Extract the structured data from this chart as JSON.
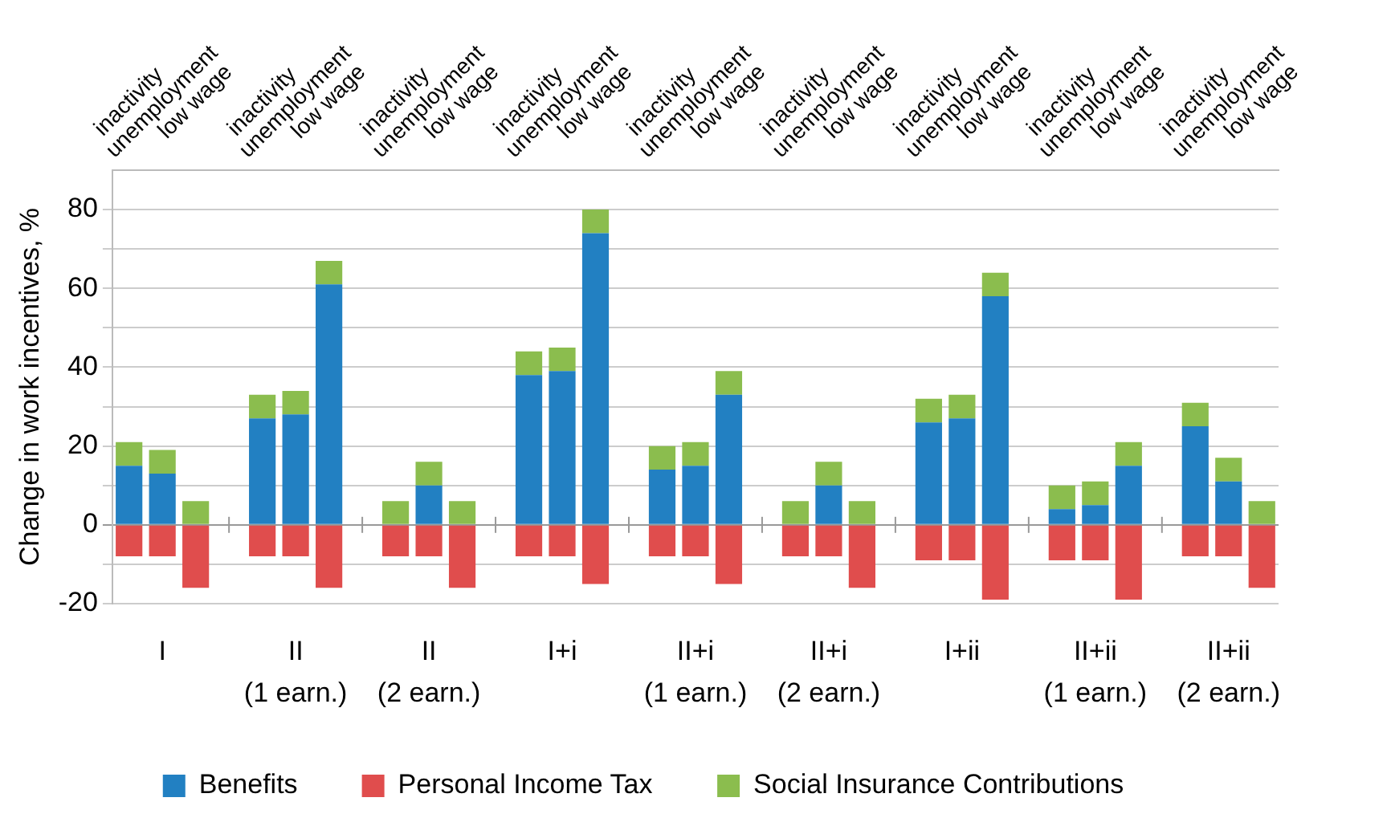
{
  "chart_data": {
    "type": "bar",
    "stacked": true,
    "ylabel": "Change in work incentives, %",
    "categories": [
      "inactivity",
      "unemployment",
      "low wage",
      null,
      "inactivity",
      "unemployment",
      "low wage",
      null,
      "inactivity",
      "unemployment",
      "low wage",
      null,
      "inactivity",
      "unemployment",
      "low wage",
      null,
      "inactivity",
      "unemployment",
      "low wage",
      null,
      "inactivity",
      "unemployment",
      "low wage",
      null,
      "inactivity",
      "unemployment",
      "low wage",
      null,
      "inactivity",
      "unemployment",
      "low wage",
      null,
      "inactivity",
      "unemployment",
      "low wage"
    ],
    "series": [
      {
        "name": "Benefits",
        "color": "#2280c2",
        "values": [
          15,
          13,
          null,
          null,
          27,
          28,
          61,
          null,
          null,
          10,
          null,
          null,
          38,
          39,
          74,
          null,
          14,
          15,
          33,
          null,
          null,
          10,
          null,
          null,
          26,
          27,
          58,
          null,
          4,
          5,
          15,
          null,
          25,
          11,
          null
        ]
      },
      {
        "name": "Personal Income Tax",
        "color": "#e04d4d",
        "values": [
          -8,
          -8,
          -16,
          null,
          -8,
          -8,
          -16,
          null,
          -8,
          -8,
          -16,
          null,
          -8,
          -8,
          -15,
          null,
          -8,
          -8,
          -15,
          null,
          -8,
          -8,
          -16,
          null,
          -9,
          -9,
          -19,
          null,
          -9,
          -9,
          -19,
          null,
          -8,
          -8,
          -16
        ]
      },
      {
        "name": "Social Insurance Contributions",
        "color": "#8bbd4e",
        "values": [
          6,
          6,
          6,
          null,
          6,
          6,
          6,
          null,
          6,
          6,
          6,
          null,
          6,
          6,
          6,
          null,
          6,
          6,
          6,
          null,
          6,
          6,
          6,
          null,
          6,
          6,
          6,
          null,
          6,
          6,
          6,
          null,
          6,
          6,
          6
        ]
      }
    ],
    "annotations": [
      "I",
      "II\n(1 earn.)",
      "II\n(2 earn.)",
      "I+i",
      "II+i\n(1 earn.)",
      "II+i\n(2 earn.)",
      "I+ii",
      "II+ii\n(1 earn.)",
      "II+ii\n(2 earn.)"
    ],
    "ylim": [
      -20,
      90
    ],
    "yticks": [
      -20,
      {
        "value": -10,
        "label": null
      },
      0,
      {
        "value": 10,
        "label": null
      },
      20,
      {
        "value": 30,
        "label": null
      },
      40,
      {
        "value": 50,
        "label": null
      },
      60,
      {
        "value": 70,
        "label": null
      },
      80
    ],
    "grid": "y",
    "legend": "bottom"
  }
}
